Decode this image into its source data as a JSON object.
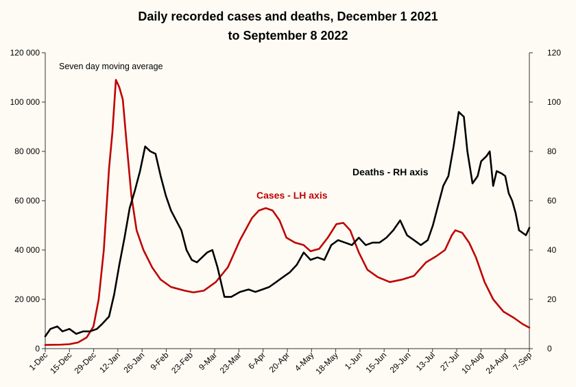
{
  "colors": {
    "background": "#fdfbf4",
    "cases": "#c00000",
    "deaths": "#000000"
  },
  "chart_data": {
    "type": "line",
    "title_line1": "Daily recorded cases and deaths,  December 1 2021",
    "title_line2": "to September 8 2022",
    "annotation": "Seven day moving average",
    "grid": false,
    "xlabel": "",
    "ylabel_left": "",
    "ylabel_right": "",
    "ylim_left": [
      0,
      120000
    ],
    "ylim_right": [
      0,
      120
    ],
    "yticks_left": [
      "0",
      "20 000",
      "40 000",
      "60 000",
      "80 000",
      "100 000",
      "120 000"
    ],
    "yticks_right": [
      "0",
      "20",
      "40",
      "60",
      "80",
      "100",
      "120"
    ],
    "x_start": "2021-12-01",
    "x_end": "2022-09-08",
    "x_tick_labels": [
      "1-Dec",
      "15-Dec",
      "29-Dec",
      "12-Jan",
      "26-Jan",
      "9-Feb",
      "23-Feb",
      "9-Mar",
      "23-Mar",
      "6-Apr",
      "20-Apr",
      "4-May",
      "18-May",
      "1-Jun",
      "15-Jun",
      "29-Jun",
      "13-Jul",
      "27-Jul",
      "10-Aug",
      "24-Aug",
      "7-Sep"
    ],
    "series": [
      {
        "name": "Cases - LH axis",
        "axis": "left",
        "color": "#c00000",
        "points": [
          [
            "2021-12-01",
            1500
          ],
          [
            "2021-12-10",
            1600
          ],
          [
            "2021-12-15",
            1800
          ],
          [
            "2021-12-20",
            2500
          ],
          [
            "2021-12-25",
            4500
          ],
          [
            "2021-12-29",
            9000
          ],
          [
            "2022-01-01",
            20000
          ],
          [
            "2022-01-04",
            40000
          ],
          [
            "2022-01-07",
            73000
          ],
          [
            "2022-01-09",
            88000
          ],
          [
            "2022-01-11",
            109000
          ],
          [
            "2022-01-13",
            106000
          ],
          [
            "2022-01-15",
            101000
          ],
          [
            "2022-01-17",
            85000
          ],
          [
            "2022-01-20",
            62000
          ],
          [
            "2022-01-23",
            48000
          ],
          [
            "2022-01-27",
            40000
          ],
          [
            "2022-02-01",
            33000
          ],
          [
            "2022-02-06",
            28000
          ],
          [
            "2022-02-12",
            25000
          ],
          [
            "2022-02-20",
            23500
          ],
          [
            "2022-02-25",
            22800
          ],
          [
            "2022-03-03",
            23500
          ],
          [
            "2022-03-10",
            27000
          ],
          [
            "2022-03-17",
            33000
          ],
          [
            "2022-03-24",
            44000
          ],
          [
            "2022-03-31",
            53000
          ],
          [
            "2022-04-04",
            56000
          ],
          [
            "2022-04-08",
            57000
          ],
          [
            "2022-04-12",
            56000
          ],
          [
            "2022-04-16",
            52000
          ],
          [
            "2022-04-20",
            45000
          ],
          [
            "2022-04-25",
            43000
          ],
          [
            "2022-04-30",
            42000
          ],
          [
            "2022-05-04",
            39500
          ],
          [
            "2022-05-09",
            40500
          ],
          [
            "2022-05-14",
            45000
          ],
          [
            "2022-05-19",
            50500
          ],
          [
            "2022-05-23",
            51000
          ],
          [
            "2022-05-27",
            48000
          ],
          [
            "2022-06-01",
            39000
          ],
          [
            "2022-06-06",
            32000
          ],
          [
            "2022-06-12",
            29000
          ],
          [
            "2022-06-19",
            27000
          ],
          [
            "2022-06-26",
            28000
          ],
          [
            "2022-07-03",
            29500
          ],
          [
            "2022-07-10",
            35000
          ],
          [
            "2022-07-16",
            37500
          ],
          [
            "2022-07-21",
            40000
          ],
          [
            "2022-07-25",
            46000
          ],
          [
            "2022-07-27",
            48000
          ],
          [
            "2022-07-31",
            47000
          ],
          [
            "2022-08-04",
            43000
          ],
          [
            "2022-08-08",
            37000
          ],
          [
            "2022-08-13",
            27000
          ],
          [
            "2022-08-18",
            20000
          ],
          [
            "2022-08-24",
            15000
          ],
          [
            "2022-08-30",
            12500
          ],
          [
            "2022-09-04",
            10000
          ],
          [
            "2022-09-08",
            8500
          ]
        ]
      },
      {
        "name": "Deaths - RH axis",
        "axis": "right",
        "color": "#000000",
        "points": [
          [
            "2021-12-01",
            5
          ],
          [
            "2021-12-04",
            8
          ],
          [
            "2021-12-08",
            9
          ],
          [
            "2021-12-11",
            7
          ],
          [
            "2021-12-15",
            8
          ],
          [
            "2021-12-19",
            6
          ],
          [
            "2021-12-23",
            7
          ],
          [
            "2021-12-27",
            7
          ],
          [
            "2021-12-31",
            8
          ],
          [
            "2022-01-03",
            10
          ],
          [
            "2022-01-07",
            13
          ],
          [
            "2022-01-10",
            22
          ],
          [
            "2022-01-13",
            34
          ],
          [
            "2022-01-16",
            45
          ],
          [
            "2022-01-19",
            57
          ],
          [
            "2022-01-22",
            64
          ],
          [
            "2022-01-25",
            72
          ],
          [
            "2022-01-28",
            82
          ],
          [
            "2022-01-31",
            80
          ],
          [
            "2022-02-03",
            79
          ],
          [
            "2022-02-06",
            70
          ],
          [
            "2022-02-09",
            62
          ],
          [
            "2022-02-12",
            56
          ],
          [
            "2022-02-15",
            52
          ],
          [
            "2022-02-18",
            48
          ],
          [
            "2022-02-21",
            40
          ],
          [
            "2022-02-24",
            36
          ],
          [
            "2022-02-27",
            35
          ],
          [
            "2022-03-02",
            37
          ],
          [
            "2022-03-05",
            39
          ],
          [
            "2022-03-08",
            40
          ],
          [
            "2022-03-11",
            33
          ],
          [
            "2022-03-15",
            21
          ],
          [
            "2022-03-19",
            21
          ],
          [
            "2022-03-24",
            23
          ],
          [
            "2022-03-29",
            24
          ],
          [
            "2022-04-02",
            23
          ],
          [
            "2022-04-06",
            24
          ],
          [
            "2022-04-10",
            25
          ],
          [
            "2022-04-14",
            27
          ],
          [
            "2022-04-18",
            29
          ],
          [
            "2022-04-22",
            31
          ],
          [
            "2022-04-26",
            34
          ],
          [
            "2022-04-30",
            39
          ],
          [
            "2022-05-04",
            36
          ],
          [
            "2022-05-08",
            37
          ],
          [
            "2022-05-12",
            36
          ],
          [
            "2022-05-16",
            42
          ],
          [
            "2022-05-20",
            44
          ],
          [
            "2022-05-24",
            43
          ],
          [
            "2022-05-28",
            42
          ],
          [
            "2022-06-01",
            45
          ],
          [
            "2022-06-05",
            42
          ],
          [
            "2022-06-09",
            43
          ],
          [
            "2022-06-13",
            43
          ],
          [
            "2022-06-17",
            45
          ],
          [
            "2022-06-21",
            48
          ],
          [
            "2022-06-25",
            52
          ],
          [
            "2022-06-29",
            46
          ],
          [
            "2022-07-03",
            44
          ],
          [
            "2022-07-07",
            42
          ],
          [
            "2022-07-11",
            44
          ],
          [
            "2022-07-14",
            50
          ],
          [
            "2022-07-17",
            58
          ],
          [
            "2022-07-20",
            66
          ],
          [
            "2022-07-23",
            70
          ],
          [
            "2022-07-26",
            82
          ],
          [
            "2022-07-29",
            96
          ],
          [
            "2022-08-01",
            94
          ],
          [
            "2022-08-03",
            80
          ],
          [
            "2022-08-06",
            67
          ],
          [
            "2022-08-09",
            70
          ],
          [
            "2022-08-11",
            76
          ],
          [
            "2022-08-14",
            78
          ],
          [
            "2022-08-16",
            80
          ],
          [
            "2022-08-18",
            66
          ],
          [
            "2022-08-20",
            72
          ],
          [
            "2022-08-23",
            71
          ],
          [
            "2022-08-25",
            70
          ],
          [
            "2022-08-27",
            63
          ],
          [
            "2022-08-29",
            60
          ],
          [
            "2022-08-31",
            55
          ],
          [
            "2022-09-02",
            48
          ],
          [
            "2022-09-04",
            47
          ],
          [
            "2022-09-06",
            46
          ],
          [
            "2022-09-08",
            49
          ]
        ]
      }
    ]
  }
}
